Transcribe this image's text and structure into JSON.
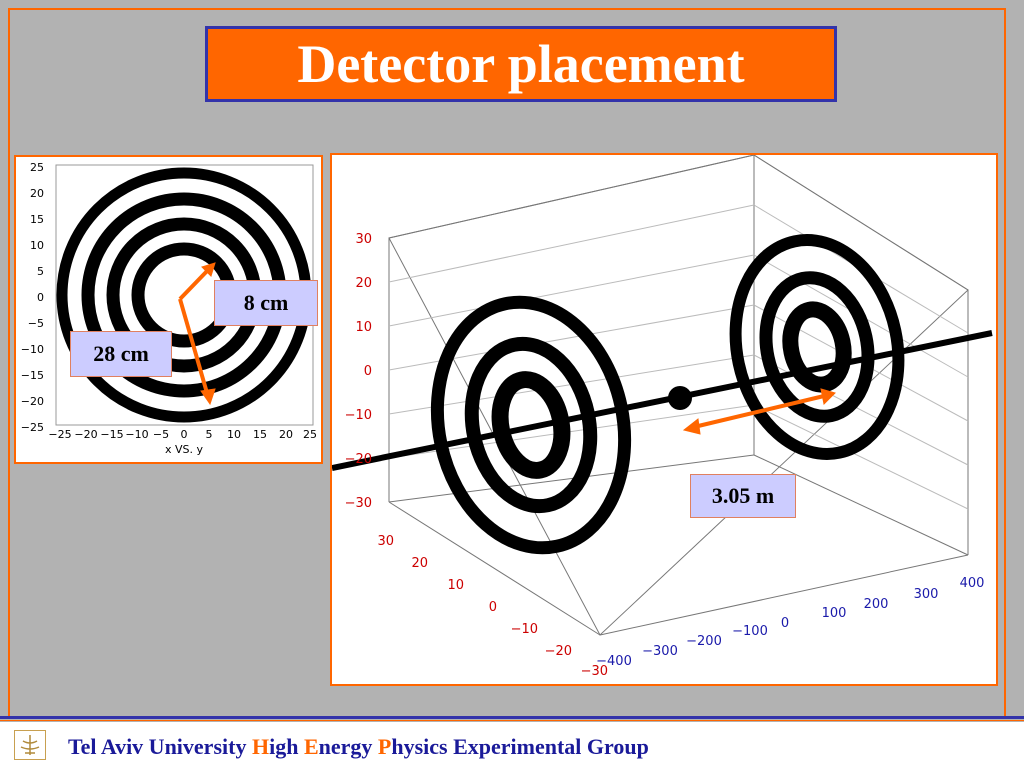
{
  "title": "Detector placement",
  "left_plot": {
    "y_ticks": [
      "25",
      "20",
      "15",
      "10",
      "5",
      "0",
      "−5",
      "−10",
      "−15",
      "−20",
      "−25"
    ],
    "x_ticks": [
      "−25",
      "−20",
      "−15",
      "−10",
      "−5",
      "0",
      "5",
      "10",
      "15",
      "20",
      "25"
    ],
    "axis_caption": "x VS. y",
    "label_inner": "8 cm",
    "label_outer": "28 cm"
  },
  "right_plot": {
    "z_ticks": [
      "30",
      "20",
      "10",
      "0",
      "−10",
      "−20",
      "−30"
    ],
    "depth_ticks": [
      "30",
      "20",
      "10",
      "0",
      "−10",
      "−20",
      "−30"
    ],
    "long_ticks": [
      "−400",
      "−300",
      "−200",
      "−100",
      "0",
      "100",
      "200",
      "300",
      "400"
    ],
    "distance_label": "3.05 m"
  },
  "footer": {
    "part1": "Tel Aviv University ",
    "h": "H",
    "part2": "igh ",
    "e": "E",
    "part3": "nergy ",
    "p": "P",
    "part4": "hysics Experimental Group"
  },
  "colors": {
    "accent": "#ff6600",
    "border_blue": "#3333aa",
    "label_bg": "#ccccff",
    "tick_red": "#cc0000"
  }
}
